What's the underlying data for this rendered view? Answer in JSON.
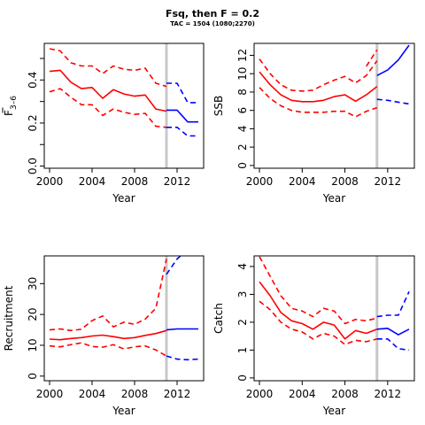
{
  "header": {
    "title": "Fsq, then F = 0.2",
    "subtitle": "TAC = 1504 (1080;2270)"
  },
  "colors": {
    "historical": "#ff0000",
    "projection": "#0000ff",
    "divider": "#c8c8c8",
    "axis": "#000000"
  },
  "chart_data": [
    {
      "id": "fbar",
      "type": "line",
      "title": "",
      "xlabel": "Year",
      "ylabel_main": "F",
      "ylabel_sub": "3–6",
      "xlim": [
        1999.5,
        2014.5
      ],
      "ylim": [
        -0.01,
        0.57
      ],
      "xticks": [
        2000,
        2004,
        2008,
        2012
      ],
      "yticks": [
        0.0,
        0.1,
        0.2,
        0.3,
        0.4,
        0.5
      ],
      "ytick_labels": [
        "0.0",
        "",
        "0.2",
        "",
        "0.4",
        ""
      ],
      "divider_x": 2011,
      "series": [
        {
          "role": "historical-median",
          "style": "solid",
          "x": [
            2000,
            2001,
            2002,
            2003,
            2004,
            2005,
            2006,
            2007,
            2008,
            2009,
            2010,
            2011
          ],
          "y": [
            0.44,
            0.445,
            0.39,
            0.36,
            0.365,
            0.315,
            0.355,
            0.335,
            0.325,
            0.33,
            0.265,
            0.255
          ]
        },
        {
          "role": "historical-upper",
          "style": "dashed",
          "x": [
            2000,
            2001,
            2002,
            2003,
            2004,
            2005,
            2006,
            2007,
            2008,
            2009,
            2010,
            2011
          ],
          "y": [
            0.545,
            0.535,
            0.48,
            0.465,
            0.465,
            0.43,
            0.465,
            0.45,
            0.445,
            0.455,
            0.385,
            0.37
          ]
        },
        {
          "role": "historical-lower",
          "style": "dashed",
          "x": [
            2000,
            2001,
            2002,
            2003,
            2004,
            2005,
            2006,
            2007,
            2008,
            2009,
            2010,
            2011
          ],
          "y": [
            0.345,
            0.36,
            0.32,
            0.285,
            0.285,
            0.235,
            0.265,
            0.25,
            0.24,
            0.245,
            0.185,
            0.18
          ]
        },
        {
          "role": "projection-median",
          "style": "solid",
          "x": [
            2011,
            2012,
            2013,
            2014
          ],
          "y": [
            0.26,
            0.26,
            0.205,
            0.205
          ]
        },
        {
          "role": "projection-upper",
          "style": "dashed",
          "x": [
            2011,
            2012,
            2013,
            2014
          ],
          "y": [
            0.385,
            0.385,
            0.295,
            0.295
          ]
        },
        {
          "role": "projection-lower",
          "style": "dashed",
          "x": [
            2011,
            2012,
            2013,
            2014
          ],
          "y": [
            0.18,
            0.18,
            0.14,
            0.14
          ]
        }
      ]
    },
    {
      "id": "ssb",
      "type": "line",
      "title": "",
      "xlabel": "Year",
      "ylabel_main": "SSB",
      "ylabel_sub": "",
      "xlim": [
        1999.5,
        2014.5
      ],
      "ylim": [
        -0.3,
        13.3
      ],
      "xticks": [
        2000,
        2004,
        2008,
        2012
      ],
      "yticks": [
        0,
        2,
        4,
        6,
        8,
        10,
        12
      ],
      "ytick_labels": [
        "0",
        "2",
        "4",
        "6",
        "8",
        "10",
        "12"
      ],
      "divider_x": 2011,
      "series": [
        {
          "role": "historical-median",
          "style": "solid",
          "x": [
            2000,
            2001,
            2002,
            2003,
            2004,
            2005,
            2006,
            2007,
            2008,
            2009,
            2010,
            2011
          ],
          "y": [
            10.2,
            8.8,
            7.7,
            7.1,
            6.95,
            6.95,
            7.1,
            7.5,
            7.7,
            7.0,
            7.7,
            8.6
          ]
        },
        {
          "role": "historical-upper",
          "style": "dashed",
          "x": [
            2000,
            2001,
            2002,
            2003,
            2004,
            2005,
            2006,
            2007,
            2008,
            2009,
            2010,
            2011
          ],
          "y": [
            11.6,
            10.0,
            8.8,
            8.2,
            8.1,
            8.2,
            8.8,
            9.3,
            9.7,
            9.0,
            9.8,
            11.4
          ]
        },
        {
          "role": "historical-lower",
          "style": "dashed",
          "x": [
            2000,
            2001,
            2002,
            2003,
            2004,
            2005,
            2006,
            2007,
            2008,
            2009,
            2010,
            2011
          ],
          "y": [
            8.5,
            7.3,
            6.5,
            6.0,
            5.8,
            5.8,
            5.8,
            5.9,
            5.9,
            5.3,
            5.9,
            6.3
          ]
        },
        {
          "role": "historical-upper-tail",
          "style": "dashed",
          "x": [
            2010,
            2011
          ],
          "y": [
            10.8,
            12.6
          ]
        },
        {
          "role": "projection-median",
          "style": "solid",
          "x": [
            2011,
            2012,
            2013,
            2014
          ],
          "y": [
            9.8,
            10.4,
            11.5,
            13.1
          ]
        },
        {
          "role": "projection-lower",
          "style": "dashed",
          "x": [
            2011,
            2012,
            2013,
            2014
          ],
          "y": [
            7.2,
            7.1,
            6.9,
            6.7
          ]
        }
      ]
    },
    {
      "id": "recruitment",
      "type": "line",
      "title": "",
      "xlabel": "Year",
      "ylabel_main": "Recruitment",
      "ylabel_sub": "",
      "xlim": [
        1999.5,
        2014.5
      ],
      "ylim": [
        -1.5,
        39.0
      ],
      "xticks": [
        2000,
        2004,
        2008,
        2012
      ],
      "yticks": [
        0,
        10,
        20,
        30
      ],
      "ytick_labels": [
        "0",
        "10",
        "20",
        "30"
      ],
      "divider_x": 2011,
      "series": [
        {
          "role": "historical-median",
          "style": "solid",
          "x": [
            2000,
            2001,
            2002,
            2003,
            2004,
            2005,
            2006,
            2007,
            2008,
            2009,
            2010,
            2011
          ],
          "y": [
            12.0,
            11.8,
            12.2,
            12.5,
            13.0,
            13.3,
            12.8,
            12.2,
            12.5,
            13.2,
            13.8,
            14.8
          ]
        },
        {
          "role": "historical-upper",
          "style": "dashed",
          "x": [
            2000,
            2001,
            2002,
            2003,
            2004,
            2005,
            2006,
            2007,
            2008,
            2009,
            2010,
            2011
          ],
          "y": [
            15.0,
            15.3,
            14.8,
            15.2,
            18.0,
            19.5,
            16.0,
            17.5,
            16.8,
            18.5,
            22.0,
            38.0
          ]
        },
        {
          "role": "historical-lower",
          "style": "dashed",
          "x": [
            2000,
            2001,
            2002,
            2003,
            2004,
            2005,
            2006,
            2007,
            2008,
            2009,
            2010,
            2011
          ],
          "y": [
            9.8,
            9.5,
            10.2,
            10.8,
            9.6,
            9.4,
            10.2,
            8.8,
            9.5,
            9.8,
            8.5,
            6.5
          ]
        },
        {
          "role": "projection-median",
          "style": "solid",
          "x": [
            2011,
            2012,
            2013,
            2014
          ],
          "y": [
            15.0,
            15.3,
            15.3,
            15.3
          ]
        },
        {
          "role": "projection-upper",
          "style": "dashed",
          "x": [
            2011,
            2012,
            2013,
            2014
          ],
          "y": [
            33.0,
            38.0,
            41.0,
            41.0
          ]
        },
        {
          "role": "projection-lower",
          "style": "dashed",
          "x": [
            2011,
            2012,
            2013,
            2014
          ],
          "y": [
            6.5,
            5.5,
            5.3,
            5.5
          ]
        }
      ]
    },
    {
      "id": "catch",
      "type": "line",
      "title": "",
      "xlabel": "Year",
      "ylabel_main": "Catch",
      "ylabel_sub": "",
      "xlim": [
        1999.5,
        2014.5
      ],
      "ylim": [
        -0.1,
        4.38
      ],
      "xticks": [
        2000,
        2004,
        2008,
        2012
      ],
      "yticks": [
        0,
        1,
        2,
        3,
        4
      ],
      "ytick_labels": [
        "0",
        "1",
        "2",
        "3",
        "4"
      ],
      "divider_x": 2011,
      "series": [
        {
          "role": "historical-median",
          "style": "solid",
          "x": [
            2000,
            2001,
            2002,
            2003,
            2004,
            2005,
            2006,
            2007,
            2008,
            2009,
            2010,
            2011
          ],
          "y": [
            3.45,
            2.95,
            2.35,
            2.05,
            1.95,
            1.75,
            2.0,
            1.9,
            1.4,
            1.7,
            1.6,
            1.75
          ]
        },
        {
          "role": "historical-upper",
          "style": "dashed",
          "x": [
            2000,
            2001,
            2002,
            2003,
            2004,
            2005,
            2006,
            2007,
            2008,
            2009,
            2010,
            2011
          ],
          "y": [
            4.35,
            3.65,
            2.95,
            2.5,
            2.4,
            2.2,
            2.5,
            2.4,
            1.95,
            2.1,
            2.05,
            2.15
          ]
        },
        {
          "role": "historical-lower",
          "style": "dashed",
          "x": [
            2000,
            2001,
            2002,
            2003,
            2004,
            2005,
            2006,
            2007,
            2008,
            2009,
            2010,
            2011
          ],
          "y": [
            2.75,
            2.45,
            2.0,
            1.75,
            1.65,
            1.4,
            1.6,
            1.5,
            1.2,
            1.35,
            1.3,
            1.4
          ]
        },
        {
          "role": "projection-median",
          "style": "solid",
          "x": [
            2011,
            2012,
            2013,
            2014
          ],
          "y": [
            1.75,
            1.78,
            1.55,
            1.75
          ]
        },
        {
          "role": "projection-upper",
          "style": "dashed",
          "x": [
            2011,
            2012,
            2013,
            2014
          ],
          "y": [
            2.2,
            2.25,
            2.25,
            3.1
          ]
        },
        {
          "role": "projection-lower",
          "style": "dashed",
          "x": [
            2011,
            2012,
            2013,
            2014
          ],
          "y": [
            1.4,
            1.4,
            1.05,
            1.0
          ]
        }
      ]
    }
  ]
}
